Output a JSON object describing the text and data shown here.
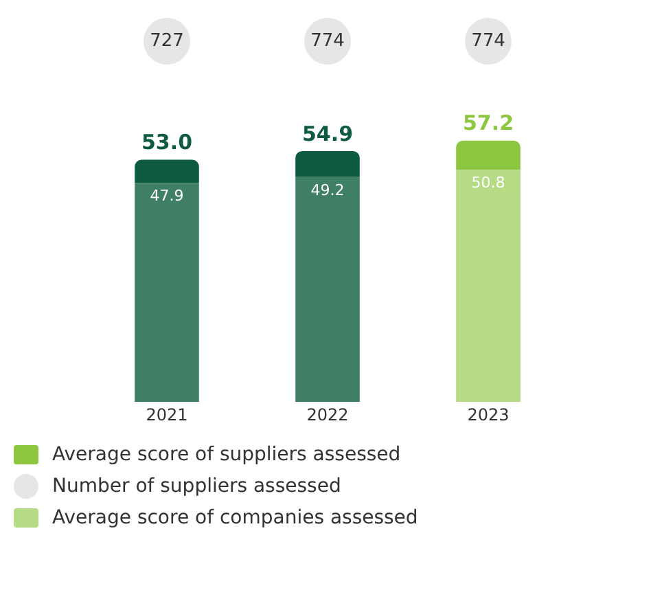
{
  "chart_data": {
    "type": "bar",
    "categories": [
      "2021",
      "2022",
      "2023"
    ],
    "stacked": true,
    "series": [
      {
        "name": "Average score of companies assessed",
        "color": "#b5dc84",
        "colors": [
          "#3f7f66",
          "#3f7f66",
          "#b5dc84"
        ],
        "values": [
          47.9,
          49.2,
          50.8
        ],
        "value_labels": [
          "47.9",
          "49.2",
          "50.8"
        ]
      },
      {
        "name": "Average score of suppliers assessed",
        "color": "#8dc63f",
        "colors": [
          "#0d5c3f",
          "#0d5c3f",
          "#8dc63f"
        ],
        "values": [
          5.1,
          5.7,
          6.4
        ]
      }
    ],
    "totals": [
      "53.0",
      "54.9",
      "57.2"
    ],
    "annotations": [
      "727",
      "774",
      "774",
      "Number of suppliers assessed"
    ],
    "legend": "bottom",
    "grid": false
  }
}
